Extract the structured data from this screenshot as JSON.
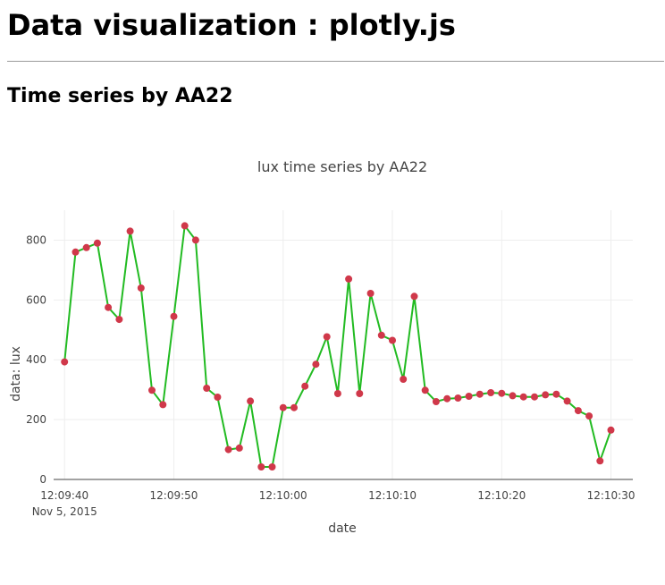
{
  "page": {
    "title": "Data visualization : plotly.js",
    "section_title": "Time series by AA22"
  },
  "chart_data": {
    "type": "line",
    "title": "lux time series by AA22",
    "xlabel": "date",
    "ylabel": "data: lux",
    "xlim": [
      "12:09:39",
      "12:10:32"
    ],
    "ylim": [
      0,
      900
    ],
    "x_ticks": [
      "12:09:40",
      "12:09:50",
      "12:10:00",
      "12:10:10",
      "12:10:20",
      "12:10:30"
    ],
    "x_tick_date": "Nov 5, 2015",
    "y_ticks": [
      0,
      200,
      400,
      600,
      800
    ],
    "grid": true,
    "line_color": "#22bb22",
    "marker_color": "#d0384a",
    "series": [
      {
        "x": [
          "12:09:40",
          "12:09:41",
          "12:09:42",
          "12:09:43",
          "12:09:44",
          "12:09:45",
          "12:09:46",
          "12:09:47",
          "12:09:48",
          "12:09:49",
          "12:09:50",
          "12:09:51",
          "12:09:52",
          "12:09:53",
          "12:09:54",
          "12:09:55",
          "12:09:56",
          "12:09:57",
          "12:09:58",
          "12:09:59",
          "12:10:00",
          "12:10:01",
          "12:10:02",
          "12:10:03",
          "12:10:04",
          "12:10:05",
          "12:10:06",
          "12:10:07",
          "12:10:08",
          "12:10:09",
          "12:10:10",
          "12:10:11",
          "12:10:12",
          "12:10:13",
          "12:10:14",
          "12:10:15",
          "12:10:16",
          "12:10:17",
          "12:10:18",
          "12:10:19",
          "12:10:20",
          "12:10:21",
          "12:10:22",
          "12:10:23",
          "12:10:24",
          "12:10:25",
          "12:10:26",
          "12:10:27",
          "12:10:28",
          "12:10:29",
          "12:10:30"
        ],
        "y": [
          393,
          760,
          775,
          790,
          575,
          535,
          830,
          640,
          298,
          250,
          545,
          848,
          800,
          305,
          275,
          100,
          105,
          262,
          42,
          42,
          240,
          240,
          312,
          385,
          477,
          287,
          670,
          287,
          622,
          482,
          465,
          335,
          612,
          298,
          260,
          270,
          272,
          278,
          285,
          290,
          288,
          280,
          276,
          276,
          283,
          285,
          262,
          230,
          212,
          62,
          165
        ]
      }
    ]
  }
}
